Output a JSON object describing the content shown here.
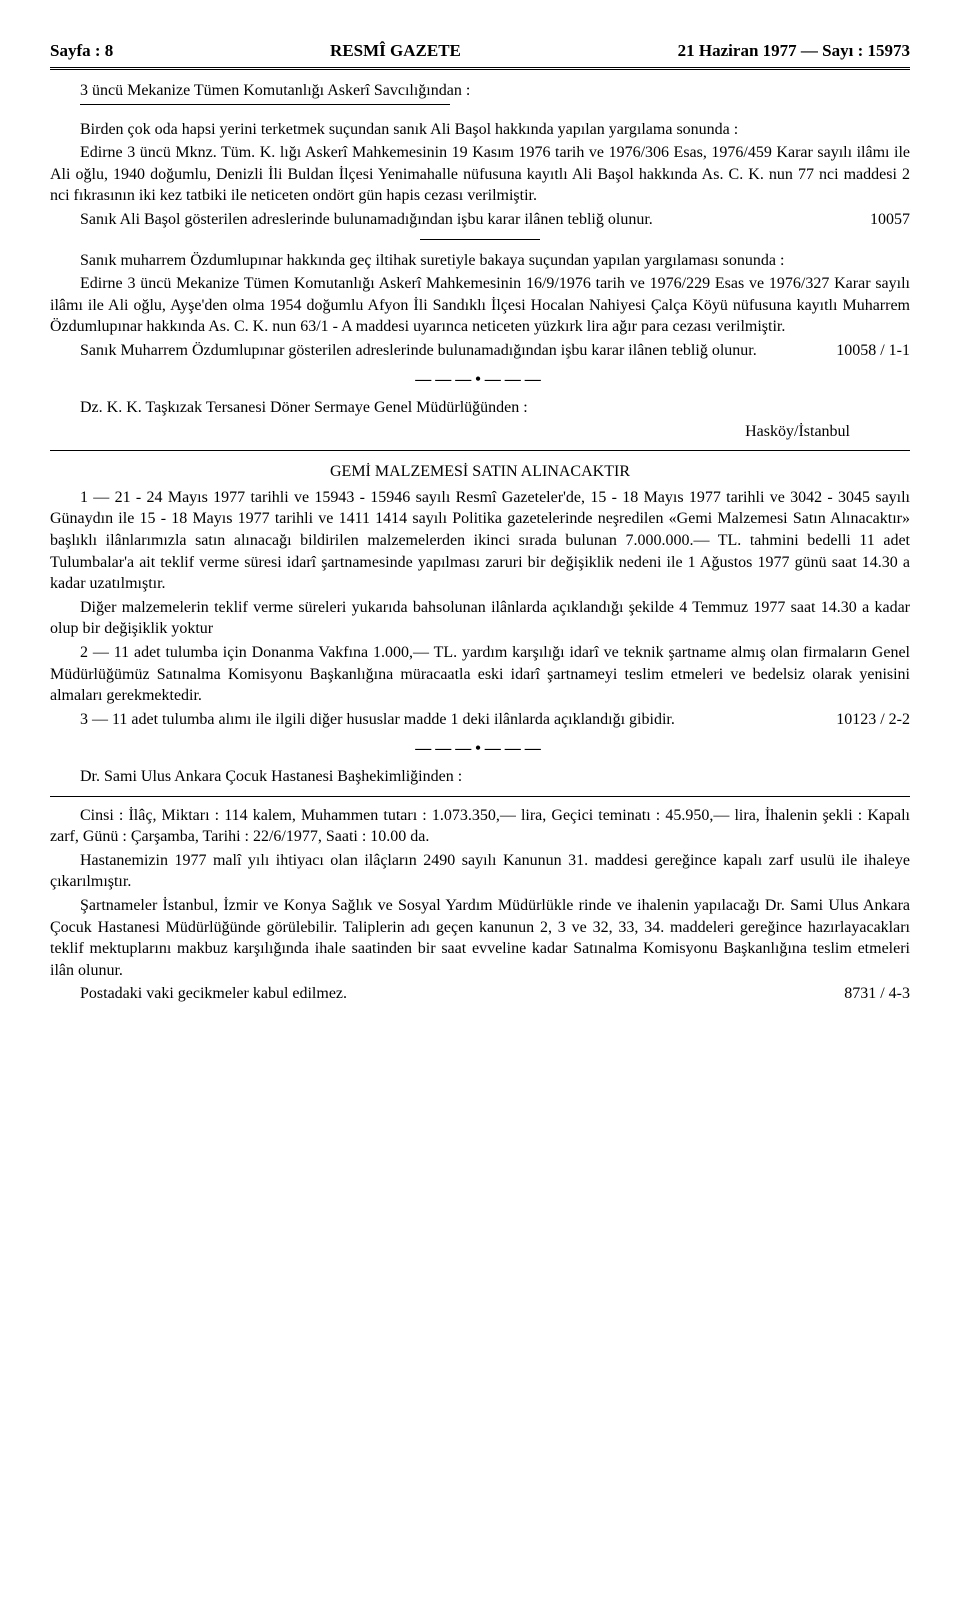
{
  "header": {
    "left": "Sayfa : 8",
    "center": "RESMÎ GAZETE",
    "right": "21 Haziran 1977 — Sayı : 15973"
  },
  "notice1": {
    "source": "3 üncü Mekanize Tümen Komutanlığı Askerî Savcılığından :",
    "p1": "Birden çok oda hapsi yerini terketmek suçundan sanık Ali Başol hakkında yapılan yargılama sonunda :",
    "p2": "Edirne 3 üncü Mknz. Tüm. K. lığı Askerî Mahkemesinin 19 Kasım 1976 tarih ve 1976/306 Esas, 1976/459 Karar sayılı ilâmı ile Ali oğlu, 1940 doğumlu, Denizli İli Buldan İlçesi Yenimahalle nüfusuna kayıtlı Ali Başol hakkında As. C. K. nun 77 nci maddesi 2 nci fıkrasının iki kez tatbiki ile neticeten ondört gün hapis cezası verilmiştir.",
    "p3a": "Sanık Ali Başol gösterilen adreslerinde bulunamadığından işbu karar ilânen tebliğ olunur.",
    "ref1": "10057"
  },
  "notice2": {
    "p1": "Sanık muharrem Özdumlupınar hakkında geç iltihak suretiyle bakaya suçundan yapılan yargılaması sonunda :",
    "p2": "Edirne 3 üncü Mekanize Tümen Komutanlığı Askerî Mahkemesinin 16/9/1976 tarih ve 1976/229 Esas ve 1976/327 Karar sayılı ilâmı ile Ali oğlu, Ayşe'den olma 1954 doğumlu Afyon İli Sandıklı İlçesi Hocalan Nahiyesi Çalça Köyü nüfusuna kayıtlı Muharrem Özdumlupınar hakkında As. C. K. nun 63/1 - A maddesi uyarınca neticeten yüzkırk lira ağır para cezası verilmiştir.",
    "p3a": "Sanık Muharrem Özdumlupınar gösterilen adreslerinde bulunamadığından işbu karar ilânen tebliğ olunur.",
    "ref": "10058 / 1-1"
  },
  "notice3": {
    "source": "Dz. K. K. Taşkızak Tersanesi Döner Sermaye Genel Müdürlüğünden :",
    "place": "Hasköy/İstanbul",
    "title": "GEMİ MALZEMESİ SATIN ALINACAKTIR",
    "p1": "1 — 21 - 24 Mayıs 1977 tarihli ve 15943 - 15946 sayılı Resmî Gazeteler'de, 15 - 18 Mayıs 1977 tarihli ve 3042 - 3045 sayılı Günaydın ile 15 - 18 Mayıs 1977 tarihli ve 1411 1414 sayılı Politika gazetelerinde neşredilen «Gemi Malzemesi Satın Alınacaktır» başlıklı ilânlarımızla satın alınacağı bildirilen malzemelerden ikinci sırada bulunan 7.000.000.— TL. tahmini bedelli 11 adet Tulumbalar'a ait teklif verme süresi idarî şartnamesinde yapılması zaruri bir değişiklik nedeni ile 1 Ağustos 1977 günü saat 14.30 a kadar uzatılmıştır.",
    "p2": "Diğer malzemelerin teklif verme süreleri yukarıda bahsolunan ilânlarda açıklandığı şekilde 4 Temmuz 1977 saat 14.30 a kadar olup bir değişiklik yoktur",
    "p3": "2 — 11 adet tulumba için Donanma Vakfına 1.000,— TL. yardım karşılığı idarî ve teknik şartname almış olan firmaların Genel Müdürlüğümüz Satınalma Komisyonu Başkanlığına müracaatla eski idarî şartnameyi teslim etmeleri ve bedelsiz olarak yenisini almaları gerekmektedir.",
    "p4a": "3 — 11 adet tulumba alımı ile ilgili diğer hususlar madde 1 deki ilânlarda açıklandığı gibidir.",
    "ref": "10123 / 2-2"
  },
  "notice4": {
    "source": "Dr. Sami Ulus Ankara Çocuk Hastanesi Başhekimliğinden :",
    "p1": "Cinsi : İlâç, Miktarı : 114 kalem, Muhammen tutarı : 1.073.350,— lira, Geçici teminatı : 45.950,— lira, İhalenin şekli : Kapalı zarf, Günü : Çarşamba, Tarihi : 22/6/1977, Saati : 10.00 da.",
    "p2": "Hastanemizin 1977 malî yılı ihtiyacı olan ilâçların 2490 sayılı Kanunun 31. maddesi gereğince kapalı zarf usulü ile ihaleye çıkarılmıştır.",
    "p3": "Şartnameler İstanbul, İzmir ve Konya Sağlık ve Sosyal Yardım Müdürlükle rinde ve ihalenin yapılacağı Dr. Sami Ulus Ankara Çocuk Hastanesi Müdürlüğünde görülebilir. Taliplerin adı geçen kanunun 2, 3 ve 32, 33, 34. maddeleri gereğince hazırlayacakları teklif mektuplarını makbuz karşılığında ihale saatinden bir saat evveline kadar Satınalma Komisyonu Başkanlığına teslim etmeleri ilân olunur.",
    "p4a": "Postadaki vaki gecikmeler kabul edilmez.",
    "ref": "8731 / 4-3"
  }
}
